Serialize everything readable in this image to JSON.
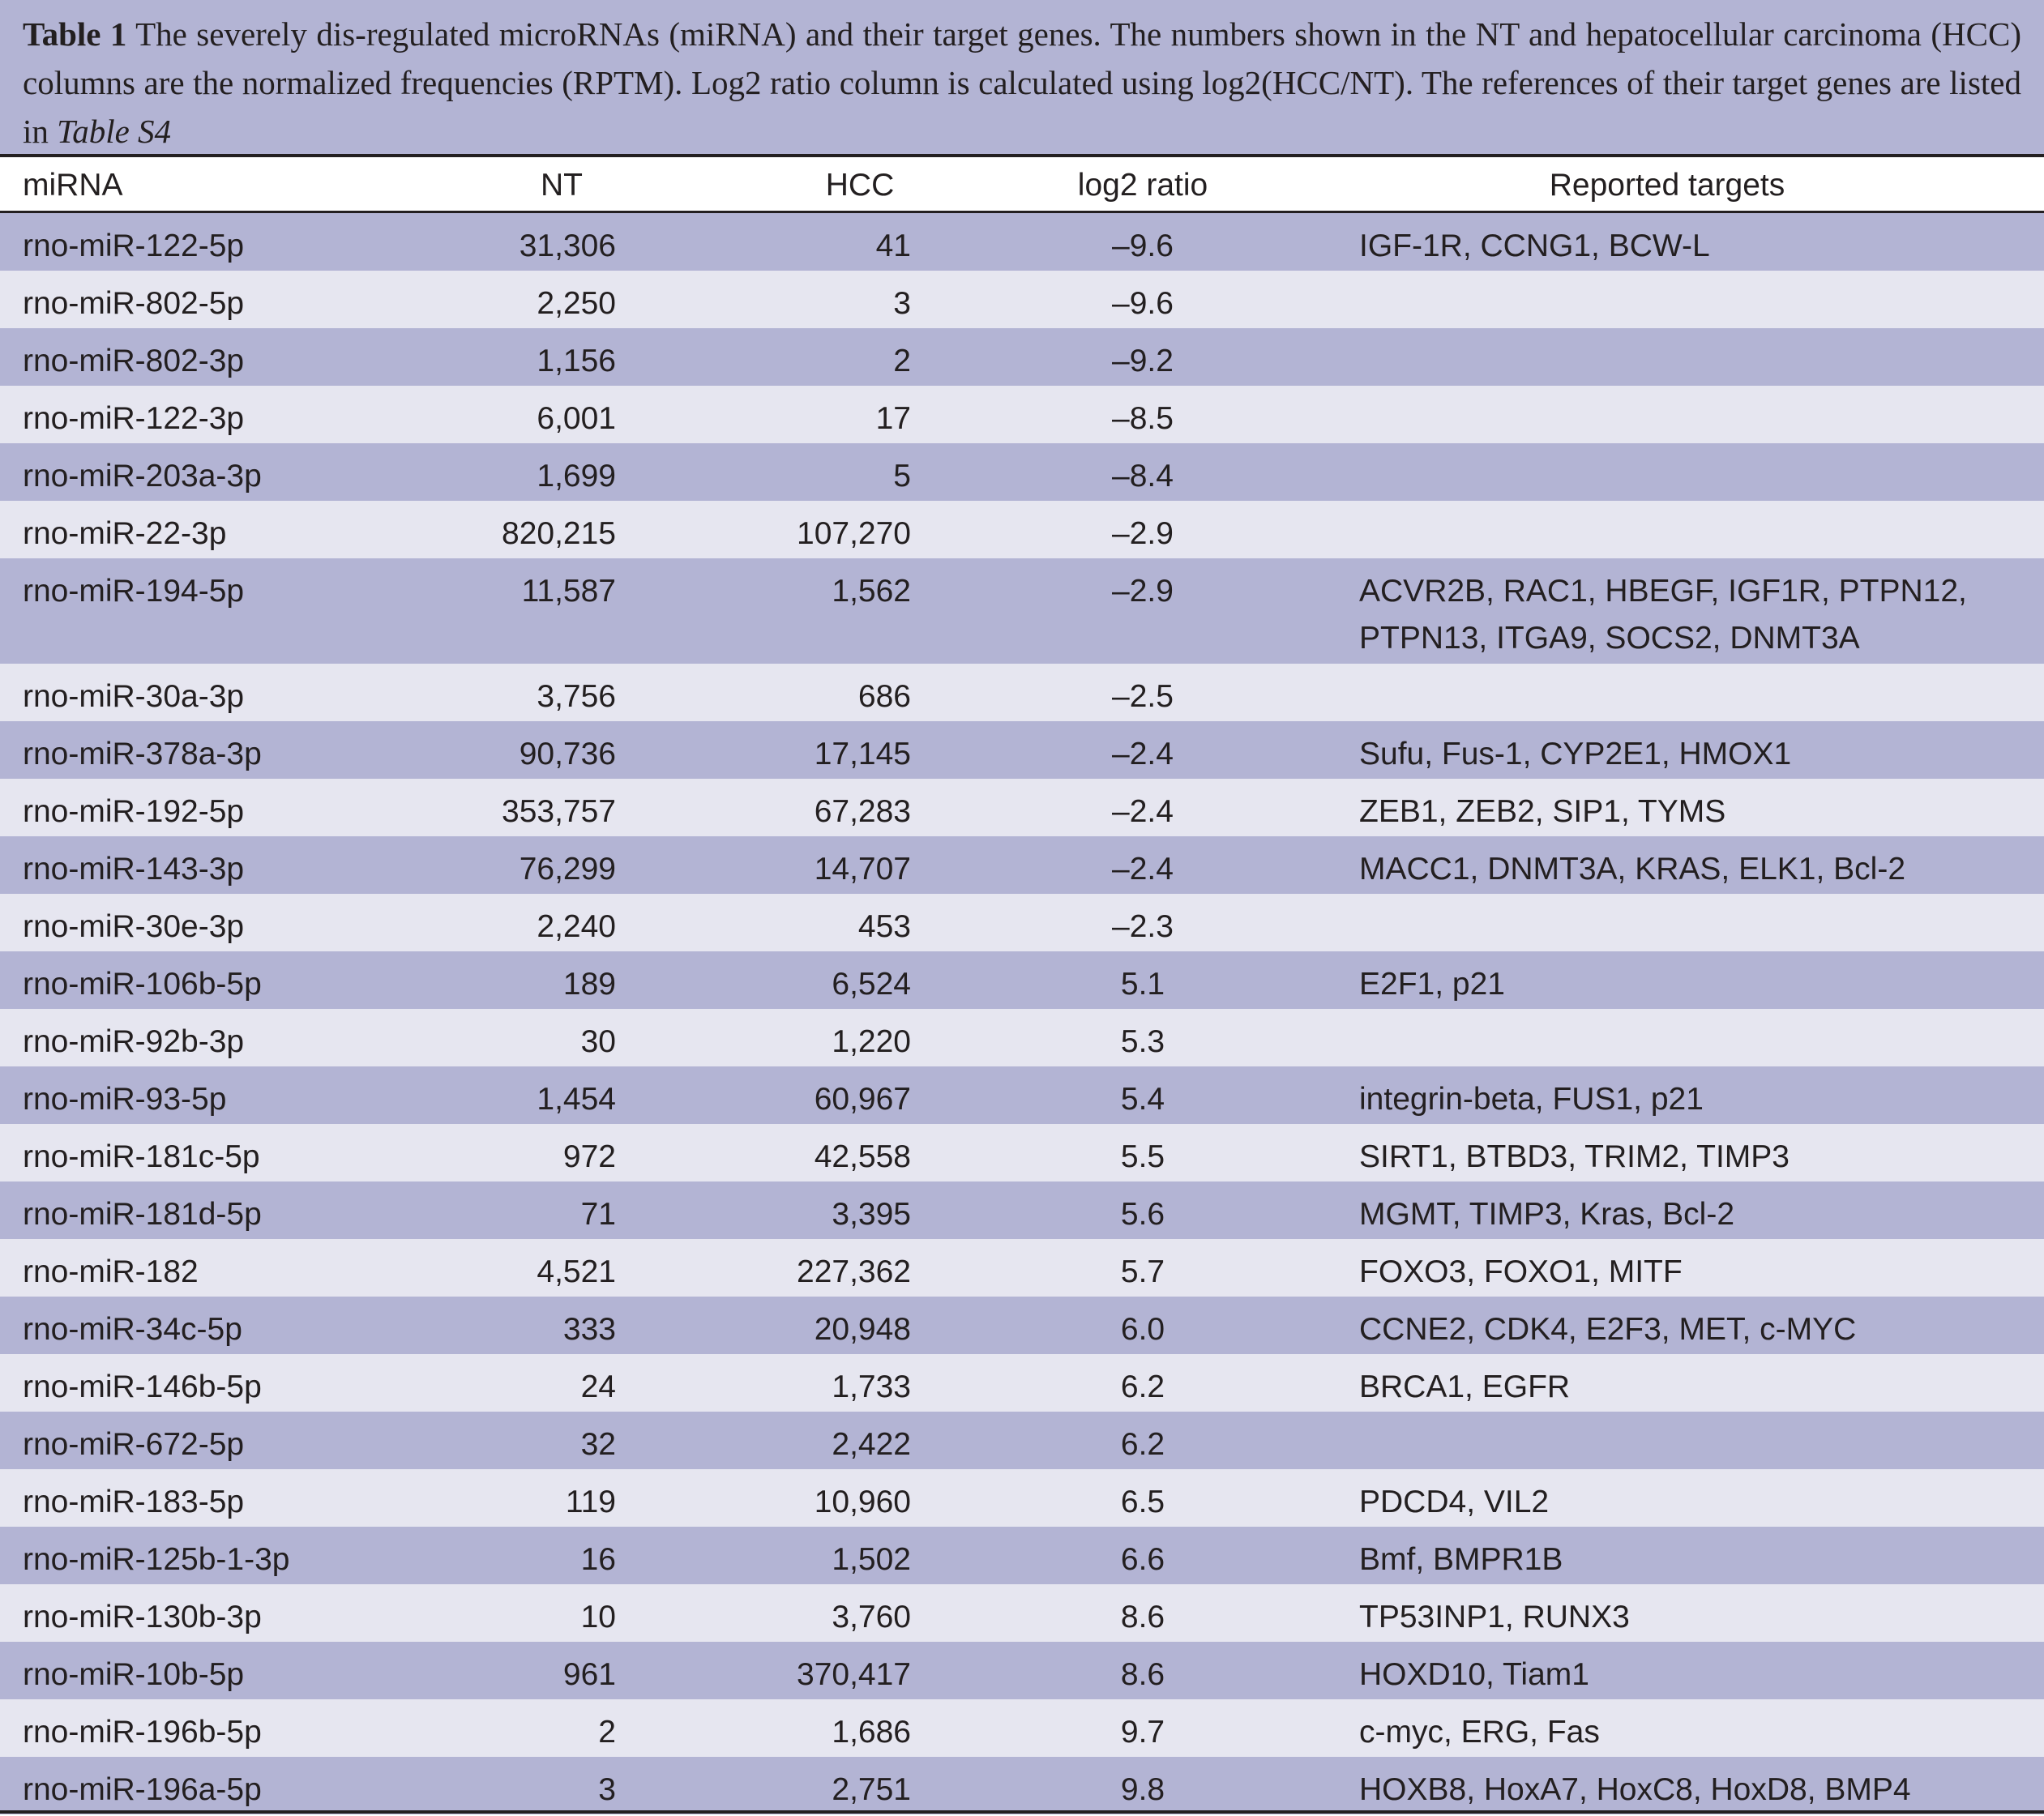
{
  "caption": {
    "label": "Table 1",
    "text": " The severely dis-regulated microRNAs (miRNA) and their target genes. The numbers shown in the NT and hepatocellular carcinoma (HCC) columns are the normalized frequencies (RPTM). Log2 ratio column is calculated using log2(HCC/NT). The references of their target genes are listed in ",
    "reference": "Table S4"
  },
  "columns": {
    "mirna": "miRNA",
    "nt": "NT",
    "hcc": "HCC",
    "log2": "log2 ratio",
    "targets": "Reported targets"
  },
  "rows": [
    {
      "mirna": "rno-miR-122-5p",
      "nt": "31,306",
      "hcc": "41",
      "log2": "–9.6",
      "targets": "IGF-1R, CCNG1, BCW-L"
    },
    {
      "mirna": "rno-miR-802-5p",
      "nt": "2,250",
      "hcc": "3",
      "log2": "–9.6",
      "targets": ""
    },
    {
      "mirna": "rno-miR-802-3p",
      "nt": "1,156",
      "hcc": "2",
      "log2": "–9.2",
      "targets": ""
    },
    {
      "mirna": "rno-miR-122-3p",
      "nt": "6,001",
      "hcc": "17",
      "log2": "–8.5",
      "targets": ""
    },
    {
      "mirna": "rno-miR-203a-3p",
      "nt": "1,699",
      "hcc": "5",
      "log2": "–8.4",
      "targets": ""
    },
    {
      "mirna": "rno-miR-22-3p",
      "nt": "820,215",
      "hcc": "107,270",
      "log2": "–2.9",
      "targets": ""
    },
    {
      "mirna": "rno-miR-194-5p",
      "nt": "11,587",
      "hcc": "1,562",
      "log2": "–2.9",
      "targets": "ACVR2B, RAC1, HBEGF, IGF1R, PTPN12, PTPN13, ITGA9, SOCS2, DNMT3A"
    },
    {
      "mirna": "rno-miR-30a-3p",
      "nt": "3,756",
      "hcc": "686",
      "log2": "–2.5",
      "targets": ""
    },
    {
      "mirna": "rno-miR-378a-3p",
      "nt": "90,736",
      "hcc": "17,145",
      "log2": "–2.4",
      "targets": "Sufu, Fus-1, CYP2E1, HMOX1"
    },
    {
      "mirna": "rno-miR-192-5p",
      "nt": "353,757",
      "hcc": "67,283",
      "log2": "–2.4",
      "targets": "ZEB1, ZEB2, SIP1, TYMS"
    },
    {
      "mirna": "rno-miR-143-3p",
      "nt": "76,299",
      "hcc": "14,707",
      "log2": "–2.4",
      "targets": "MACC1, DNMT3A, KRAS, ELK1, Bcl-2"
    },
    {
      "mirna": "rno-miR-30e-3p",
      "nt": "2,240",
      "hcc": "453",
      "log2": "–2.3",
      "targets": ""
    },
    {
      "mirna": "rno-miR-106b-5p",
      "nt": "189",
      "hcc": "6,524",
      "log2": "5.1",
      "targets": "E2F1, p21"
    },
    {
      "mirna": "rno-miR-92b-3p",
      "nt": "30",
      "hcc": "1,220",
      "log2": "5.3",
      "targets": ""
    },
    {
      "mirna": "rno-miR-93-5p",
      "nt": "1,454",
      "hcc": "60,967",
      "log2": "5.4",
      "targets": "integrin-beta, FUS1, p21"
    },
    {
      "mirna": "rno-miR-181c-5p",
      "nt": "972",
      "hcc": "42,558",
      "log2": "5.5",
      "targets": "SIRT1, BTBD3, TRIM2, TIMP3"
    },
    {
      "mirna": "rno-miR-181d-5p",
      "nt": "71",
      "hcc": "3,395",
      "log2": "5.6",
      "targets": "MGMT, TIMP3, Kras, Bcl-2"
    },
    {
      "mirna": "rno-miR-182",
      "nt": "4,521",
      "hcc": "227,362",
      "log2": "5.7",
      "targets": "FOXO3, FOXO1, MITF"
    },
    {
      "mirna": "rno-miR-34c-5p",
      "nt": "333",
      "hcc": "20,948",
      "log2": "6.0",
      "targets": "CCNE2, CDK4, E2F3, MET, c-MYC"
    },
    {
      "mirna": "rno-miR-146b-5p",
      "nt": "24",
      "hcc": "1,733",
      "log2": "6.2",
      "targets": "BRCA1, EGFR"
    },
    {
      "mirna": "rno-miR-672-5p",
      "nt": "32",
      "hcc": "2,422",
      "log2": "6.2",
      "targets": ""
    },
    {
      "mirna": "rno-miR-183-5p",
      "nt": "119",
      "hcc": "10,960",
      "log2": "6.5",
      "targets": "PDCD4, VIL2"
    },
    {
      "mirna": "rno-miR-125b-1-3p",
      "nt": "16",
      "hcc": "1,502",
      "log2": "6.6",
      "targets": "Bmf, BMPR1B"
    },
    {
      "mirna": "rno-miR-130b-3p",
      "nt": "10",
      "hcc": "3,760",
      "log2": "8.6",
      "targets": "TP53INP1, RUNX3"
    },
    {
      "mirna": "rno-miR-10b-5p",
      "nt": "961",
      "hcc": "370,417",
      "log2": "8.6",
      "targets": "HOXD10, Tiam1"
    },
    {
      "mirna": "rno-miR-196b-5p",
      "nt": "2",
      "hcc": "1,686",
      "log2": "9.7",
      "targets": "c-myc, ERG, Fas"
    },
    {
      "mirna": "rno-miR-196a-5p",
      "nt": "3",
      "hcc": "2,751",
      "log2": "9.8",
      "targets": "HOXB8, HoxA7, HoxC8, HoxD8, BMP4"
    }
  ]
}
